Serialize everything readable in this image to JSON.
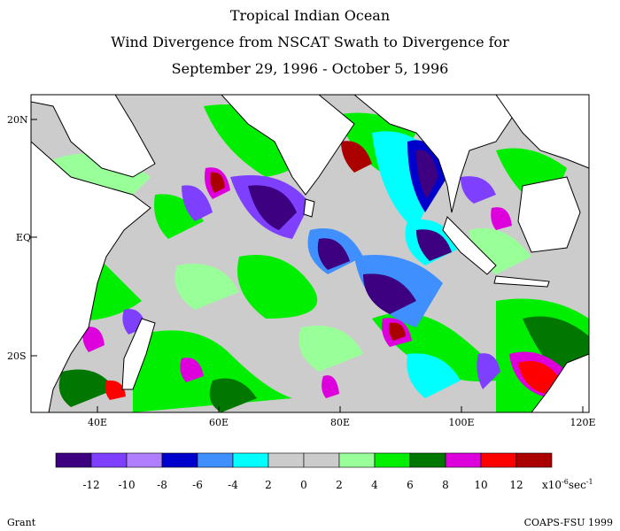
{
  "title": {
    "line1": "Tropical Indian Ocean",
    "line2": "Wind Divergence from NSCAT Swath to Divergence for",
    "line3": "September 29, 1996 - October 5, 1996"
  },
  "axes": {
    "lat_labels": [
      "20N",
      "EQ",
      "20S"
    ],
    "lon_labels": [
      "40E",
      "60E",
      "80E",
      "100E",
      "120E"
    ]
  },
  "colorbar": {
    "colors": [
      "#3d0080",
      "#7f3fff",
      "#b07fff",
      "#0000cc",
      "#3f8fff",
      "#00ffff",
      "#cccccc",
      "#cccccc",
      "#99ff99",
      "#00ee00",
      "#007700",
      "#dd00dd",
      "#ff0000",
      "#aa0000"
    ],
    "labels": [
      "-12",
      "-10",
      "-8",
      "-6",
      "-4",
      "2",
      "0",
      "2",
      "4",
      "6",
      "8",
      "10",
      "12"
    ],
    "units_prefix": "x10",
    "units_exp": "-6",
    "units_suffix": "sec",
    "units_exp2": "-1"
  },
  "footer": {
    "left": "Grant",
    "right": "COAPS-FSU 1999"
  },
  "colors": {
    "land": "#ffffff",
    "coast": "#000000",
    "ocean_neutral": "#cccccc"
  }
}
